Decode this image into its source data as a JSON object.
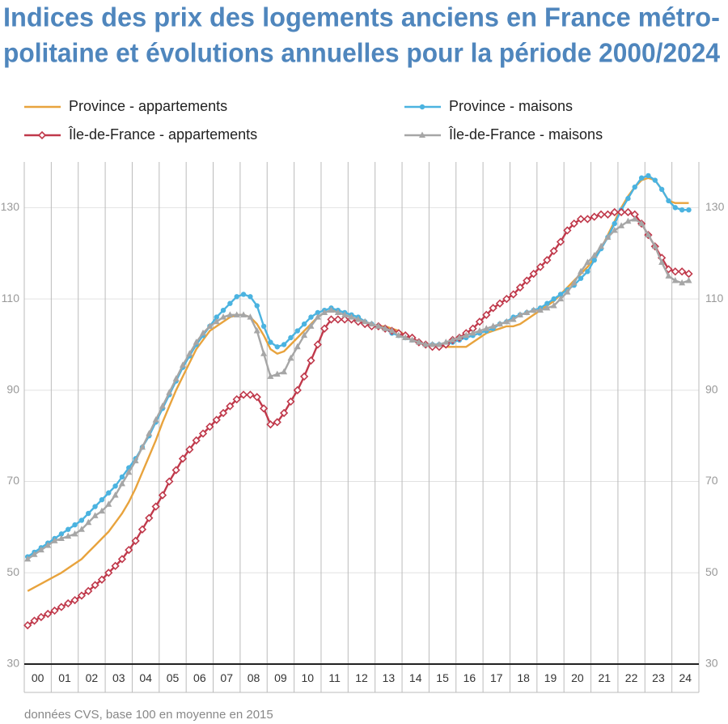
{
  "chart_data": {
    "type": "line",
    "title": [
      "Indices des prix des logements anciens en France métro-",
      "politaine et évolutions annuelles pour la période 2000/2024"
    ],
    "note": "données CVS, base 100 en moyenne en 2015",
    "categories": [
      "00",
      "01",
      "02",
      "03",
      "04",
      "05",
      "06",
      "07",
      "08",
      "09",
      "10",
      "11",
      "12",
      "13",
      "14",
      "15",
      "16",
      "17",
      "18",
      "19",
      "20",
      "21",
      "22",
      "23",
      "24"
    ],
    "ylim": [
      30,
      140
    ],
    "yticks": [
      30,
      50,
      70,
      90,
      110,
      130
    ],
    "grid": true,
    "series": [
      {
        "name": "Province - appartements",
        "color": "#e8a33d",
        "values": [
          [
            46,
            46.8,
            47.6,
            48.4
          ],
          [
            49.2,
            50,
            51,
            52
          ],
          [
            53,
            54.5,
            56,
            57.5
          ],
          [
            59,
            61,
            63,
            65.5
          ],
          [
            68.5,
            72,
            75.5,
            79
          ],
          [
            83,
            86.5,
            90,
            93
          ],
          [
            96,
            99,
            101,
            103
          ],
          [
            104,
            105,
            106,
            106.5
          ],
          [
            106.5,
            106,
            104.5,
            102
          ],
          [
            99,
            98,
            98.5,
            100
          ],
          [
            101.5,
            103,
            104.5,
            106
          ],
          [
            107,
            107.5,
            107.5,
            107
          ],
          [
            106.5,
            106,
            105,
            104.5
          ],
          [
            104,
            104,
            103.5,
            103
          ],
          [
            102,
            101,
            100.5,
            100
          ],
          [
            100,
            100,
            99.5,
            99.5
          ],
          [
            99.5,
            99.5,
            100.5,
            101.5
          ],
          [
            102.5,
            103,
            103.5,
            104
          ],
          [
            104,
            104.5,
            105.5,
            106.5
          ],
          [
            107.5,
            108.5,
            109.5,
            111
          ],
          [
            112.5,
            114,
            115.5,
            117
          ],
          [
            119,
            121,
            124,
            127
          ],
          [
            130,
            132.5,
            134.5,
            136
          ],
          [
            136.5,
            136,
            134,
            131.5
          ],
          [
            131,
            131,
            131,
            null
          ]
        ]
      },
      {
        "name": "Province - maisons",
        "color": "#4bb3e0",
        "marker": "circle",
        "values": [
          [
            53.5,
            54.5,
            55.5,
            56.5
          ],
          [
            57.5,
            58.5,
            59.5,
            60.5
          ],
          [
            61.5,
            63,
            64.5,
            66
          ],
          [
            67.5,
            69,
            71,
            73
          ],
          [
            75,
            77.5,
            80,
            83
          ],
          [
            86,
            89,
            92,
            95
          ],
          [
            97.5,
            100,
            102,
            104
          ],
          [
            106,
            107.5,
            109,
            110.5
          ],
          [
            111,
            110.5,
            108.5,
            104
          ],
          [
            100.5,
            99.5,
            100,
            101.5
          ],
          [
            103,
            104.5,
            106,
            107
          ],
          [
            107.5,
            108,
            107.5,
            107
          ],
          [
            106.5,
            106,
            105,
            104.5
          ],
          [
            104,
            103.5,
            102.5,
            102
          ],
          [
            101.5,
            101,
            100.5,
            100
          ],
          [
            100,
            100,
            100,
            100.5
          ],
          [
            101,
            101.5,
            102,
            102.5
          ],
          [
            103,
            103.5,
            104.5,
            105
          ],
          [
            106,
            106.5,
            107,
            107.5
          ],
          [
            108,
            109,
            110,
            111
          ],
          [
            112,
            113,
            114.5,
            116
          ],
          [
            118.5,
            121,
            123.5,
            126.5
          ],
          [
            129.5,
            132,
            134.5,
            136.5
          ],
          [
            137,
            136,
            134,
            131.5
          ],
          [
            130,
            129.5,
            129.5,
            null
          ]
        ]
      },
      {
        "name": "Île-de-France - appartements",
        "color": "#c0394b",
        "marker": "diamond",
        "values": [
          [
            38.5,
            39.5,
            40.3,
            41
          ],
          [
            41.7,
            42.5,
            43.3,
            44
          ],
          [
            45,
            46,
            47.3,
            48.5
          ],
          [
            50,
            51.5,
            53,
            55
          ],
          [
            57,
            59.5,
            62,
            64.5
          ],
          [
            67,
            70,
            72.5,
            75
          ],
          [
            77,
            79,
            80.5,
            82
          ],
          [
            83.5,
            85,
            86.5,
            88
          ],
          [
            89,
            89,
            88.5,
            86
          ],
          [
            82.5,
            83,
            85,
            87.5
          ],
          [
            90,
            93,
            96.5,
            100
          ],
          [
            103.5,
            105.5,
            105.5,
            105.5
          ],
          [
            105.5,
            105,
            104.5,
            104
          ],
          [
            104,
            103.5,
            103,
            102.5
          ],
          [
            102,
            101.5,
            100.5,
            100
          ],
          [
            99.5,
            99.5,
            100,
            101
          ],
          [
            101.5,
            102.5,
            103.5,
            105
          ],
          [
            106.5,
            108,
            109,
            110
          ],
          [
            111,
            112.5,
            114,
            115.5
          ],
          [
            117,
            118.5,
            120.5,
            122.5
          ],
          [
            125,
            126.5,
            127.5,
            127.5
          ],
          [
            128,
            128.5,
            128.5,
            129
          ],
          [
            129,
            129,
            128.5,
            126.5
          ],
          [
            124,
            121.5,
            119,
            116.5
          ],
          [
            116,
            116,
            115.5,
            null
          ]
        ]
      },
      {
        "name": "Île-de-France - maisons",
        "color": "#a6a6a6",
        "marker": "triangle",
        "values": [
          [
            53,
            54,
            55,
            56
          ],
          [
            57,
            57.5,
            58,
            58.5
          ],
          [
            59.5,
            61,
            62.5,
            63.5
          ],
          [
            65,
            67,
            69.5,
            72
          ],
          [
            74.5,
            77.5,
            80.5,
            83.5
          ],
          [
            86.5,
            89.5,
            92.5,
            95.5
          ],
          [
            98,
            100.5,
            102.5,
            104
          ],
          [
            105,
            106,
            106.5,
            106.5
          ],
          [
            106.5,
            106,
            103,
            98
          ],
          [
            93,
            93.5,
            94,
            97
          ],
          [
            99.5,
            102,
            104,
            106
          ],
          [
            107,
            107.5,
            107,
            106.5
          ],
          [
            106,
            105.5,
            105,
            104.5
          ],
          [
            104,
            103.5,
            103,
            102
          ],
          [
            101.5,
            101,
            100.5,
            100
          ],
          [
            100,
            100,
            100.5,
            101
          ],
          [
            101.5,
            102,
            102.5,
            103
          ],
          [
            103.5,
            104,
            104.5,
            105
          ],
          [
            105.5,
            106.5,
            107,
            107.5
          ],
          [
            107.5,
            108,
            108.5,
            110
          ],
          [
            111.5,
            113.5,
            116,
            118
          ],
          [
            119.5,
            121.5,
            123.5,
            125
          ],
          [
            126,
            127,
            127.5,
            126.5
          ],
          [
            124,
            121.5,
            118,
            115
          ],
          [
            114,
            113.5,
            114,
            null
          ]
        ]
      }
    ]
  }
}
